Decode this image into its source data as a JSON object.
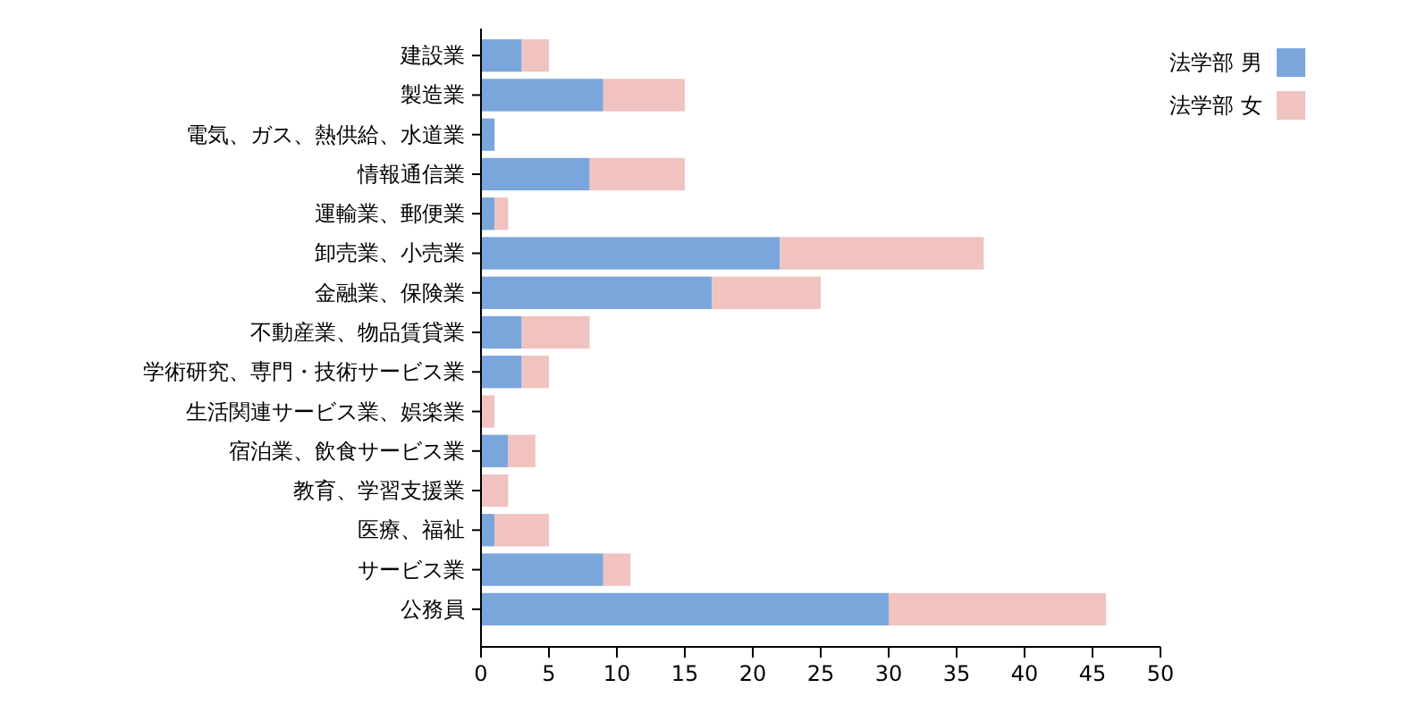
{
  "chart_data": {
    "type": "bar",
    "orientation": "horizontal",
    "stacked": true,
    "legend": "top right",
    "categories": [
      "建設業",
      "製造業",
      "電気、ガス、熱供給、水道業",
      "情報通信業",
      "運輸業、郵便業",
      "卸売業、小売業",
      "金融業、保険業",
      "不動産業、物品賃貸業",
      "学術研究、専門・技術サービス業",
      "生活関連サービス業、娯楽業",
      "宿泊業、飲食サービス業",
      "教育、学習支援業",
      "医療、福祉",
      "サービス業",
      "公務員"
    ],
    "series": [
      {
        "name": "法学部 男",
        "color": "#7aa6dc",
        "values": [
          3,
          9,
          1,
          8,
          1,
          22,
          17,
          3,
          3,
          0,
          2,
          0,
          1,
          9,
          30
        ]
      },
      {
        "name": "法学部 女",
        "color": "#f0c2c0",
        "values": [
          2,
          6,
          0,
          7,
          1,
          15,
          8,
          5,
          2,
          1,
          2,
          2,
          4,
          2,
          16
        ]
      }
    ],
    "xlim": [
      0,
      50
    ],
    "xticks": [
      0,
      5,
      10,
      15,
      20,
      25,
      30,
      35,
      40,
      45,
      50
    ]
  }
}
